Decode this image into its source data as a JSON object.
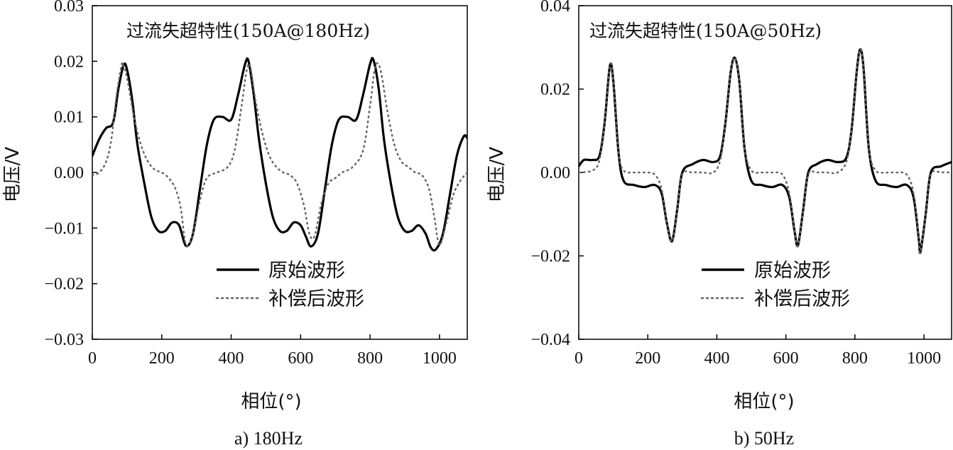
{
  "chart_data": [
    {
      "type": "line",
      "title": "过流失超特性(150A@180Hz)",
      "xlabel": "相位(°)",
      "ylabel": "电压/V",
      "caption": "a) 180Hz",
      "xlim": [
        0,
        1080
      ],
      "ylim": [
        -0.03,
        0.03
      ],
      "xticks": [
        0,
        200,
        400,
        600,
        800,
        1000
      ],
      "yticks": [
        -0.03,
        -0.02,
        -0.01,
        0.0,
        0.01,
        0.02,
        0.03
      ],
      "ytick_labels": [
        "−0.03",
        "−0.02",
        "−0.01",
        "0.00",
        "0.01",
        "0.02",
        "0.03"
      ],
      "grid": false,
      "legend": "bottom-right",
      "series": [
        {
          "name": "原始波形",
          "style": "solid",
          "x": [
            0,
            20,
            40,
            60,
            75,
            90,
            100,
            115,
            130,
            150,
            170,
            190,
            210,
            230,
            250,
            270,
            290,
            310,
            330,
            350,
            375,
            400,
            420,
            440,
            450,
            465,
            480,
            500,
            520,
            540,
            560,
            580,
            600,
            615,
            630,
            650,
            670,
            690,
            710,
            735,
            760,
            780,
            800,
            810,
            825,
            840,
            860,
            880,
            900,
            920,
            940,
            960,
            975,
            990,
            1010,
            1030,
            1050,
            1070,
            1080
          ],
          "y": [
            0.003,
            0.006,
            0.008,
            0.009,
            0.015,
            0.0193,
            0.0185,
            0.013,
            0.005,
            -0.002,
            -0.008,
            -0.0105,
            -0.0105,
            -0.009,
            -0.0095,
            -0.0132,
            -0.011,
            -0.003,
            0.005,
            0.0095,
            0.01,
            0.0095,
            0.014,
            0.0195,
            0.02,
            0.014,
            0.006,
            -0.002,
            -0.008,
            -0.0105,
            -0.0105,
            -0.009,
            -0.0095,
            -0.0115,
            -0.0133,
            -0.011,
            -0.003,
            0.005,
            0.0095,
            0.01,
            0.0095,
            0.014,
            0.0195,
            0.0202,
            0.015,
            0.006,
            -0.002,
            -0.008,
            -0.0105,
            -0.0105,
            -0.0095,
            -0.011,
            -0.0135,
            -0.0138,
            -0.011,
            -0.004,
            0.003,
            0.0065,
            0.0062
          ]
        },
        {
          "name": "补偿后波形",
          "style": "dotted",
          "x": [
            0,
            20,
            40,
            55,
            70,
            85,
            90,
            100,
            120,
            140,
            160,
            180,
            200,
            220,
            240,
            255,
            270,
            290,
            310,
            330,
            360,
            390,
            410,
            430,
            445,
            455,
            470,
            490,
            510,
            530,
            550,
            570,
            590,
            610,
            625,
            640,
            660,
            680,
            700,
            720,
            750,
            780,
            800,
            815,
            830,
            850,
            870,
            890,
            910,
            930,
            950,
            970,
            985,
            1000,
            1020,
            1040,
            1060,
            1080
          ],
          "y": [
            -0.0005,
            0.0,
            0.002,
            0.006,
            0.014,
            0.0195,
            0.019,
            0.017,
            0.01,
            0.005,
            0.002,
            0.0005,
            0.0,
            -0.001,
            -0.003,
            -0.0065,
            -0.013,
            -0.011,
            -0.005,
            -0.001,
            0.0,
            0.001,
            0.004,
            0.012,
            0.0185,
            0.019,
            0.013,
            0.007,
            0.003,
            0.001,
            0.0,
            -0.0005,
            -0.002,
            -0.006,
            -0.011,
            -0.0115,
            -0.0055,
            -0.002,
            -0.001,
            0.0,
            0.001,
            0.004,
            0.012,
            0.019,
            0.0185,
            0.011,
            0.005,
            0.002,
            0.001,
            0.0,
            -0.0005,
            -0.003,
            -0.008,
            -0.013,
            -0.009,
            -0.004,
            -0.0015,
            0.0
          ]
        }
      ]
    },
    {
      "type": "line",
      "title": "过流失超特性(150A@50Hz)",
      "xlabel": "相位(°)",
      "ylabel": "电压/V",
      "caption": "b) 50Hz",
      "xlim": [
        0,
        1080
      ],
      "ylim": [
        -0.04,
        0.04
      ],
      "xticks": [
        0,
        200,
        400,
        600,
        800,
        1000
      ],
      "yticks": [
        -0.04,
        -0.02,
        0.0,
        0.02,
        0.04
      ],
      "ytick_labels": [
        "−0.04",
        "−0.02",
        "0.00",
        "0.02",
        "0.04"
      ],
      "grid": false,
      "legend": "bottom-right",
      "series": [
        {
          "name": "原始波形",
          "style": "solid",
          "x": [
            0,
            15,
            40,
            60,
            75,
            90,
            100,
            115,
            130,
            160,
            190,
            220,
            240,
            255,
            270,
            285,
            300,
            330,
            360,
            390,
            410,
            425,
            440,
            452,
            465,
            480,
            500,
            530,
            560,
            590,
            610,
            625,
            635,
            650,
            665,
            690,
            720,
            750,
            775,
            790,
            805,
            815,
            825,
            840,
            860,
            890,
            920,
            950,
            970,
            985,
            990,
            1005,
            1020,
            1050,
            1080
          ],
          "y": [
            0.0015,
            0.003,
            0.003,
            0.004,
            0.012,
            0.0255,
            0.022,
            0.005,
            -0.002,
            -0.003,
            -0.0035,
            -0.003,
            -0.005,
            -0.012,
            -0.0165,
            -0.009,
            0.0,
            0.002,
            0.003,
            0.0025,
            0.004,
            0.012,
            0.024,
            0.0275,
            0.022,
            0.006,
            -0.002,
            -0.003,
            -0.0035,
            -0.003,
            -0.006,
            -0.014,
            -0.0175,
            -0.009,
            0.0,
            0.002,
            0.003,
            0.0025,
            0.0035,
            0.01,
            0.024,
            0.0295,
            0.025,
            0.006,
            -0.002,
            -0.003,
            -0.0035,
            -0.003,
            -0.006,
            -0.016,
            -0.019,
            -0.01,
            0.0,
            0.0015,
            0.0025
          ]
        },
        {
          "name": "补偿后波形",
          "style": "dotted",
          "x": [
            0,
            40,
            60,
            75,
            90,
            100,
            115,
            130,
            160,
            190,
            220,
            240,
            255,
            270,
            285,
            300,
            330,
            360,
            390,
            410,
            425,
            440,
            452,
            465,
            480,
            500,
            530,
            560,
            590,
            610,
            625,
            635,
            650,
            665,
            690,
            720,
            750,
            775,
            790,
            805,
            815,
            825,
            840,
            860,
            890,
            920,
            950,
            970,
            985,
            990,
            1005,
            1020,
            1050,
            1080
          ],
          "y": [
            0.0,
            0.0005,
            0.003,
            0.012,
            0.0255,
            0.022,
            0.005,
            0.0005,
            0.0,
            0.0,
            -0.0005,
            -0.004,
            -0.012,
            -0.0165,
            -0.009,
            -0.0005,
            0.0,
            0.0,
            0.0,
            0.003,
            0.012,
            0.024,
            0.0275,
            0.022,
            0.006,
            0.0005,
            0.0,
            0.0,
            -0.0005,
            -0.005,
            -0.014,
            -0.0175,
            -0.009,
            -0.0005,
            0.0,
            0.0,
            0.0,
            0.0025,
            0.01,
            0.024,
            0.0295,
            0.025,
            0.006,
            0.0005,
            0.0,
            0.0,
            -0.0005,
            -0.005,
            -0.016,
            -0.019,
            -0.01,
            -0.0005,
            0.0,
            0.0
          ]
        }
      ]
    }
  ]
}
